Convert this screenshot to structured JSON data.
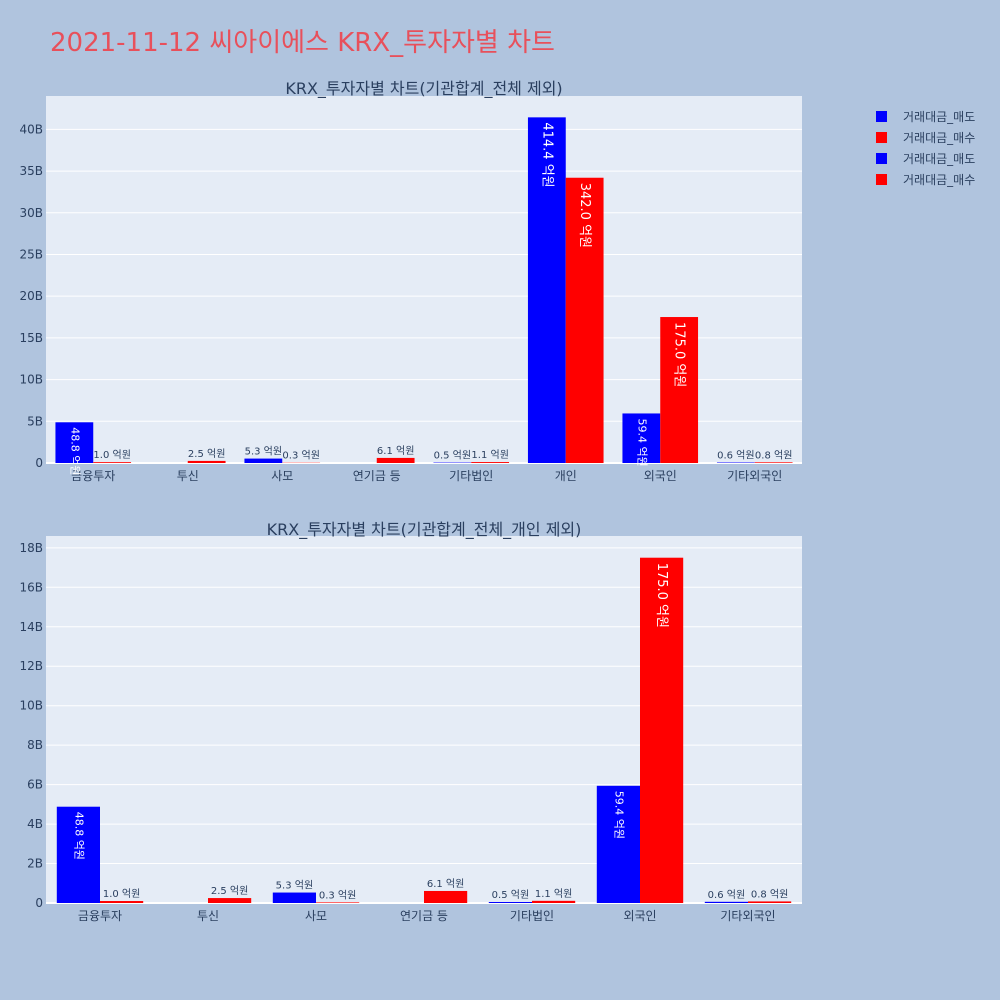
{
  "title": "2021-11-12 씨아이에스 KRX_투자자별 차트",
  "colors": {
    "sell": "#0000ff",
    "buy": "#ff0000",
    "plot_bg": "#e5ecf6",
    "paper_bg": "#b0c4de",
    "title": "#e8505b",
    "text": "#2a3f5f"
  },
  "legend": [
    {
      "label": "거래대금_매도",
      "color": "#0000ff"
    },
    {
      "label": "거래대금_매수",
      "color": "#ff0000"
    },
    {
      "label": "거래대금_매도",
      "color": "#0000ff"
    },
    {
      "label": "거래대금_매수",
      "color": "#ff0000"
    }
  ],
  "chart_data": [
    {
      "type": "bar",
      "title": "KRX_투자자별 차트(기관합계_전체 제외)",
      "categories": [
        "금융투자",
        "투신",
        "사모",
        "연기금 등",
        "기타법인",
        "개인",
        "외국인",
        "기타외국인"
      ],
      "series": [
        {
          "name": "거래대금_매도",
          "values": [
            4.88,
            0,
            0.53,
            0,
            0.05,
            41.44,
            5.94,
            0.06
          ],
          "labels": [
            "48.8 억원",
            "",
            "5.3 억원",
            "",
            "0.5 억원",
            "414.4 억원",
            "59.4 억원",
            "0.6 억원"
          ]
        },
        {
          "name": "거래대금_매수",
          "values": [
            0.1,
            0.25,
            0.03,
            0.61,
            0.11,
            34.2,
            17.5,
            0.08
          ],
          "labels": [
            "1.0 억원",
            "2.5 억원",
            "0.3 억원",
            "6.1 억원",
            "1.1 억원",
            "342.0 억원",
            "175.0 억원",
            "0.8 억원"
          ]
        }
      ],
      "yticks": [
        "0",
        "5B",
        "10B",
        "15B",
        "20B",
        "25B",
        "30B",
        "35B",
        "40B"
      ],
      "ylim": [
        0,
        44
      ],
      "grid": true
    },
    {
      "type": "bar",
      "title": "KRX_투자자별 차트(기관합계_전체_개인 제외)",
      "categories": [
        "금융투자",
        "투신",
        "사모",
        "연기금 등",
        "기타법인",
        "외국인",
        "기타외국인"
      ],
      "series": [
        {
          "name": "거래대금_매도",
          "values": [
            4.88,
            0,
            0.53,
            0,
            0.05,
            5.94,
            0.06
          ],
          "labels": [
            "48.8 억원",
            "",
            "5.3 억원",
            "",
            "0.5 억원",
            "59.4 억원",
            "0.6 억원"
          ]
        },
        {
          "name": "거래대금_매수",
          "values": [
            0.1,
            0.25,
            0.03,
            0.61,
            0.11,
            17.5,
            0.08
          ],
          "labels": [
            "1.0 억원",
            "2.5 억원",
            "0.3 억원",
            "6.1 억원",
            "1.1 억원",
            "175.0 억원",
            "0.8 억원"
          ]
        }
      ],
      "yticks": [
        "0",
        "2B",
        "4B",
        "6B",
        "8B",
        "10B",
        "12B",
        "14B",
        "16B",
        "18B"
      ],
      "ylim": [
        0,
        18.6
      ],
      "grid": true
    }
  ]
}
